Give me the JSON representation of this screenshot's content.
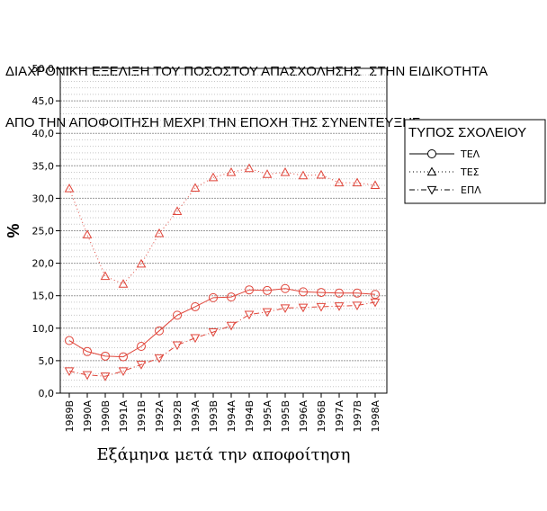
{
  "title_lines": [
    "ΔΙΑΧΡΟΝΙΚΗ ΕΞΕΛΙΞΗ ΤΟΥ ΠΟΣΟΣΤΟΥ ΑΠΑΣΧΟΛΗΣΗΣ  ΣΤΗΝ ΕΙΔΙΚΟΤΗΤΑ",
    "ΑΠΟ ΤΗΝ ΑΠΟΦΟΙΤΗΣΗ ΜΕΧΡΙ ΤΗΝ ΕΠΟΧΗ ΤΗΣ ΣΥΝΕΝΤΕΥΞΗΣ"
  ],
  "chart_data": {
    "type": "line",
    "title": "ΔΙΑΧΡΟΝΙΚΗ ΕΞΕΛΙΞΗ ΤΟΥ ΠΟΣΟΣΤΟΥ ΑΠΑΣΧΟΛΗΣΗΣ  ΣΤΗΝ ΕΙΔΙΚΟΤΗΤΑ ΑΠΟ ΤΗΝ ΑΠΟΦΟΙΤΗΣΗ ΜΕΧΡΙ ΤΗΝ ΕΠΟΧΗ ΤΗΣ ΣΥΝΕΝΤΕΥΞΗΣ",
    "xlabel": "Εξάμηνα μετά την αποφοίτηση",
    "ylabel": "%",
    "ylim": [
      0,
      50
    ],
    "yticks": [
      "0,0",
      "5,0",
      "10,0",
      "15,0",
      "20,0",
      "25,0",
      "30,0",
      "35,0",
      "40,0",
      "45,0",
      "50,0"
    ],
    "grid": true,
    "categories": [
      "1989Β",
      "1990Α",
      "1990Β",
      "1991Α",
      "1991Β",
      "1992Α",
      "1992Β",
      "1993Α",
      "1993Β",
      "1994Α",
      "1994Β",
      "1995Α",
      "1995Β",
      "1996Α",
      "1996Β",
      "1997Α",
      "1997Β",
      "1998Α"
    ],
    "legend": {
      "title": "ΤΥΠΟΣ ΣΧΟΛΕΙΟΥ",
      "placement": "right"
    },
    "series_color": "#e0453a",
    "series": [
      {
        "name": "ΤΕΛ",
        "marker": "circle",
        "line": "solid",
        "values": [
          8.1,
          6.4,
          5.7,
          5.6,
          7.2,
          9.6,
          12.0,
          13.3,
          14.7,
          14.8,
          15.9,
          15.8,
          16.1,
          15.6,
          15.5,
          15.4,
          15.4,
          15.2
        ]
      },
      {
        "name": "ΤΕΣ",
        "marker": "triangle-up",
        "line": "dotted",
        "values": [
          31.5,
          24.4,
          18.0,
          16.8,
          19.9,
          24.6,
          28.0,
          31.6,
          33.2,
          34.0,
          34.6,
          33.7,
          34.0,
          33.5,
          33.6,
          32.4,
          32.4,
          32.0
        ]
      },
      {
        "name": "ΕΠΛ",
        "marker": "triangle-down",
        "line": "dashdot",
        "values": [
          3.4,
          2.8,
          2.6,
          3.4,
          4.4,
          5.4,
          7.4,
          8.5,
          9.4,
          10.4,
          12.1,
          12.5,
          13.1,
          13.2,
          13.3,
          13.4,
          13.5,
          14.0
        ]
      }
    ]
  }
}
